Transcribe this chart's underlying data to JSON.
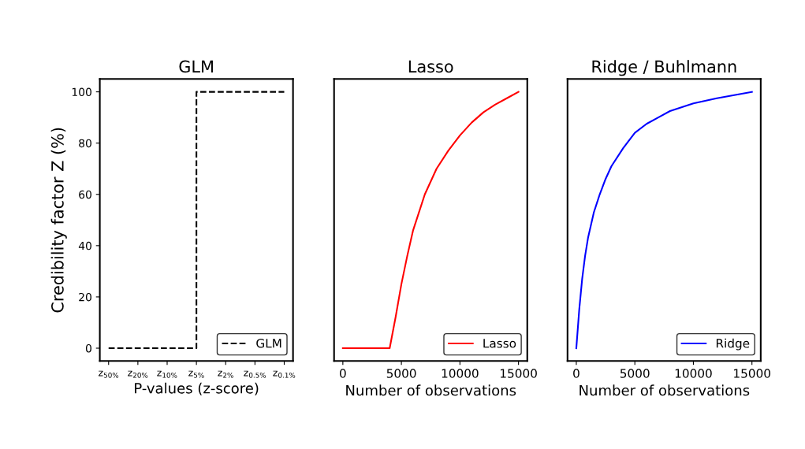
{
  "chart_data": [
    {
      "type": "step",
      "title": "GLM",
      "xlabel": "P-values (z-score)",
      "ylabel": "Credibility factor Z (%)",
      "categories": [
        "z$_{50%}$",
        "z$_{20%}$",
        "z$_{10%}$",
        "z$_{5%}$",
        "z$_{2%}$",
        "z$_{0.5%}$",
        "z$_{0.1%}$"
      ],
      "series": [
        {
          "name": "GLM",
          "color": "#000000",
          "values": [
            0,
            0,
            0,
            100,
            100,
            100,
            100
          ]
        }
      ],
      "line_style": "dashed",
      "legend": "bottom right",
      "ylim": [
        -5,
        105
      ],
      "yticks": [
        0,
        20,
        40,
        60,
        80,
        100
      ]
    },
    {
      "type": "line",
      "title": "Lasso",
      "xlabel": "Number of observations",
      "x": [
        0,
        4000,
        4500,
        5000,
        5500,
        6000,
        7000,
        8000,
        9000,
        10000,
        11000,
        12000,
        13000,
        14000,
        15000
      ],
      "series": [
        {
          "name": "Lasso",
          "color": "#ff0000",
          "values": [
            0,
            0,
            12,
            25,
            36,
            46,
            60,
            70,
            77,
            83,
            88,
            92,
            95,
            97.5,
            100
          ]
        }
      ],
      "line_style": "solid",
      "legend": "bottom right",
      "xlim": [
        -750,
        15750
      ],
      "xticks": [
        0,
        5000,
        10000,
        15000
      ],
      "ylim": [
        -5,
        105
      ],
      "tick_labels": "x"
    },
    {
      "type": "line",
      "title": "Ridge / Buhlmann",
      "xlabel": "Number of observations",
      "x": [
        0,
        250,
        500,
        750,
        1000,
        1500,
        2000,
        2500,
        3000,
        4000,
        5000,
        6000,
        7000,
        8000,
        10000,
        12000,
        15000
      ],
      "series": [
        {
          "name": "Ridge",
          "color": "#0000ff",
          "values": [
            0,
            15,
            27,
            36,
            43,
            53,
            60,
            66,
            71,
            78,
            84,
            87.5,
            90,
            92.5,
            95.5,
            97.5,
            100
          ]
        }
      ],
      "line_style": "solid",
      "legend": "bottom right",
      "xlim": [
        -750,
        15750
      ],
      "xticks": [
        0,
        5000,
        10000,
        15000
      ],
      "ylim": [
        -5,
        105
      ],
      "tick_labels": "x"
    }
  ]
}
